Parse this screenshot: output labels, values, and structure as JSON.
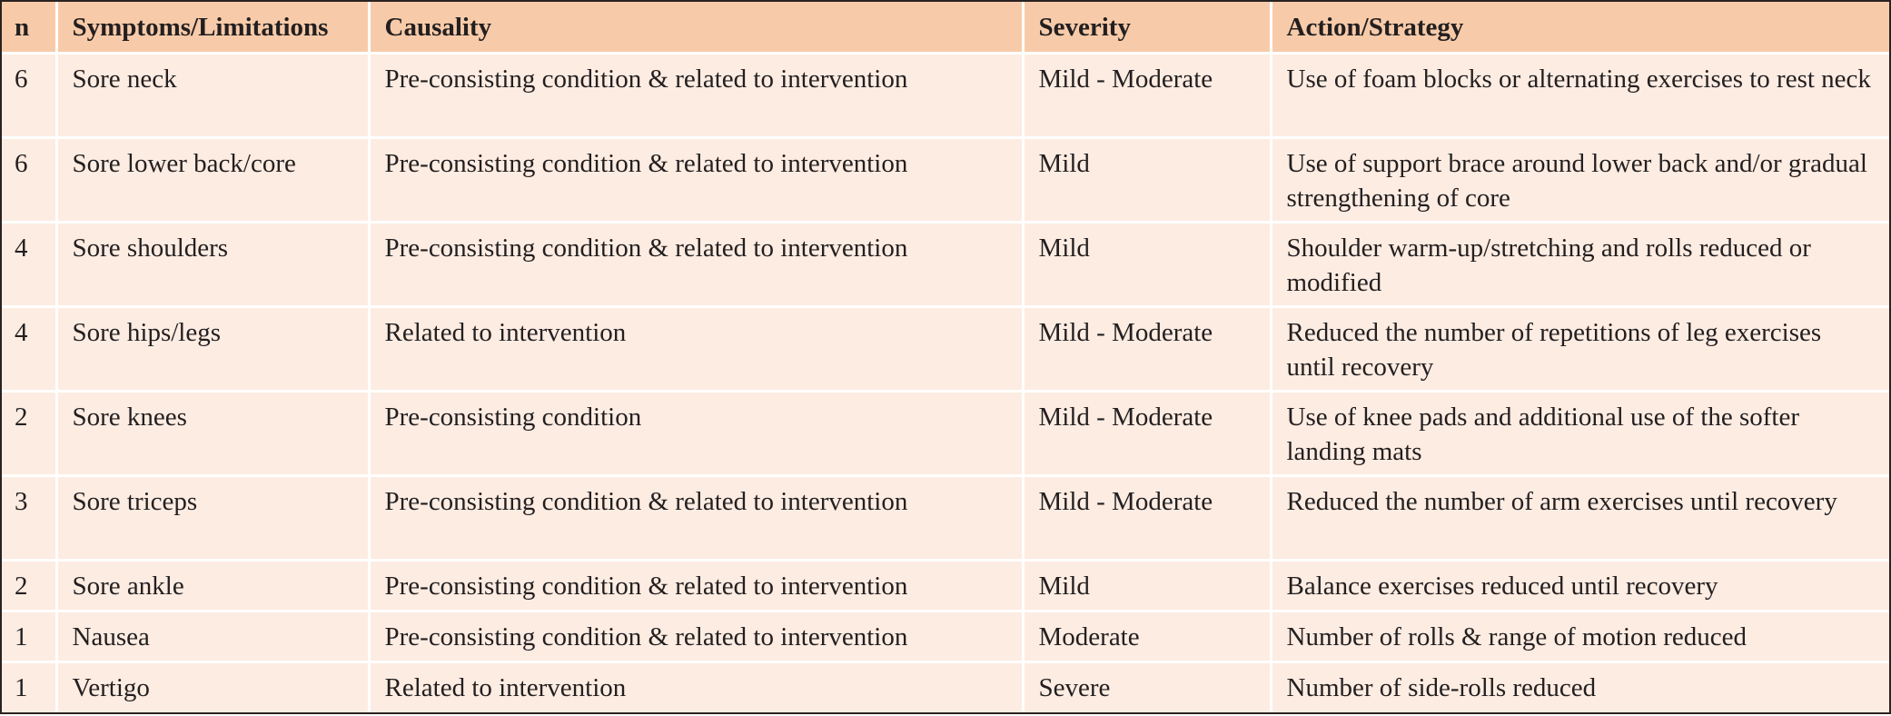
{
  "headers": {
    "n": "n",
    "symptoms": "Symptoms/Limitations",
    "causality": "Causality",
    "severity": "Severity",
    "action": "Action/Strategy"
  },
  "rows": [
    {
      "n": "6",
      "symptom": "Sore neck",
      "causality": "Pre-consisting condition & related to intervention",
      "severity": "Mild - Moderate",
      "action": "Use of foam blocks or alternating exercises to rest neck"
    },
    {
      "n": "6",
      "symptom": "Sore lower back/core",
      "causality": "Pre-consisting condition & related to intervention",
      "severity": "Mild",
      "action": "Use of support brace around lower back and/or gradual strengthening of core"
    },
    {
      "n": "4",
      "symptom": "Sore shoulders",
      "causality": "Pre-consisting condition & related to intervention",
      "severity": "Mild",
      "action": "Shoulder warm-up/stretching and rolls reduced or modified"
    },
    {
      "n": "4",
      "symptom": "Sore hips/legs",
      "causality": "Related to intervention",
      "severity": "Mild - Moderate",
      "action": "Reduced the number of repetitions of leg exercises until recovery"
    },
    {
      "n": "2",
      "symptom": "Sore knees",
      "causality": "Pre-consisting condition",
      "severity": "Mild - Moderate",
      "action": "Use of knee pads and additional use of the softer landing mats"
    },
    {
      "n": "3",
      "symptom": "Sore triceps",
      "causality": "Pre-consisting condition & related to intervention",
      "severity": "Mild - Moderate",
      "action": "Reduced the number of arm exercises until recovery"
    },
    {
      "n": "2",
      "symptom": "Sore ankle",
      "causality": "Pre-consisting condition & related to intervention",
      "severity": "Mild",
      "action": "Balance exercises reduced until recovery"
    },
    {
      "n": "1",
      "symptom": "Nausea",
      "causality": "Pre-consisting condition & related to intervention",
      "severity": "Moderate",
      "action": "Number of rolls & range of motion reduced"
    },
    {
      "n": "1",
      "symptom": "Vertigo",
      "causality": "Related to intervention",
      "severity": "Severe",
      "action": "Number of side-rolls reduced"
    }
  ]
}
